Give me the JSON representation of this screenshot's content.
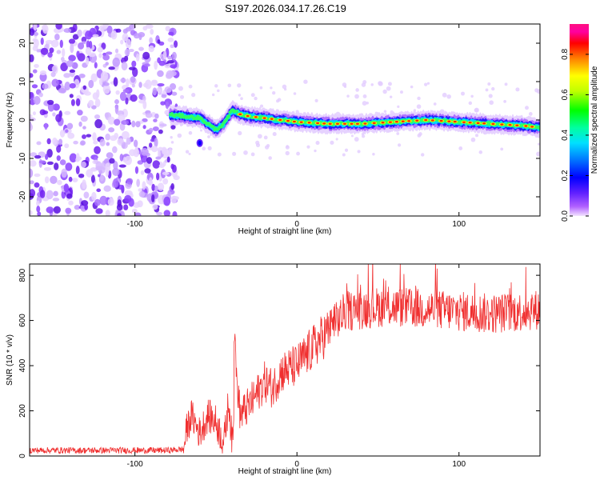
{
  "figure": {
    "title": "S197.2026.034.17.26.C19"
  },
  "chart_data": [
    {
      "type": "heatmap",
      "xlabel": "Height of straight line (km)",
      "ylabel": "Frequency (Hz)",
      "xlim": [
        -165,
        150
      ],
      "ylim": [
        -25,
        25
      ],
      "xticks": [
        -100,
        0,
        100
      ],
      "yticks": [
        -20,
        -10,
        0,
        10,
        20
      ],
      "grid": false,
      "noise_region_end_km": -78,
      "ridge": {
        "description_points_x": [
          -80,
          -60,
          -50,
          -45,
          -40,
          -35,
          -30,
          -20,
          -10,
          0,
          20,
          40,
          60,
          80,
          100,
          120,
          140,
          150
        ],
        "frequency_hz": [
          1.5,
          0.5,
          -2.5,
          -1.0,
          2.5,
          1.5,
          1.0,
          0.5,
          0.0,
          -0.5,
          -1.0,
          -1.0,
          -0.5,
          0.0,
          -0.5,
          -1.0,
          -1.5,
          -2.0
        ]
      },
      "colorbar": {
        "label": "Normalized spectral amplitude",
        "range": [
          0.0,
          0.95
        ],
        "ticks": [
          0.0,
          0.2,
          0.4,
          0.6,
          0.8
        ]
      }
    },
    {
      "type": "line",
      "xlabel": "Height of straight line (km)",
      "ylabel": "SNR (10 * v/v)",
      "xlim": [
        -165,
        150
      ],
      "ylim": [
        0,
        850
      ],
      "xticks": [
        -100,
        0,
        100
      ],
      "yticks": [
        0,
        200,
        400,
        600,
        800
      ],
      "grid": false,
      "series": [
        {
          "name": "SNR",
          "color": "#f03030",
          "x": [
            -165,
            -140,
            -120,
            -100,
            -80,
            -70,
            -68,
            -65,
            -60,
            -55,
            -50,
            -45,
            -42,
            -40,
            -38,
            -35,
            -30,
            -25,
            -20,
            -15,
            -10,
            0,
            10,
            20,
            25,
            30,
            40,
            50,
            60,
            80,
            100,
            120,
            140,
            150
          ],
          "y": [
            25,
            25,
            25,
            25,
            25,
            30,
            120,
            180,
            100,
            180,
            150,
            60,
            250,
            50,
            400,
            180,
            220,
            270,
            330,
            300,
            370,
            400,
            480,
            560,
            600,
            640,
            650,
            660,
            660,
            650,
            640,
            630,
            640,
            650
          ]
        }
      ]
    }
  ]
}
